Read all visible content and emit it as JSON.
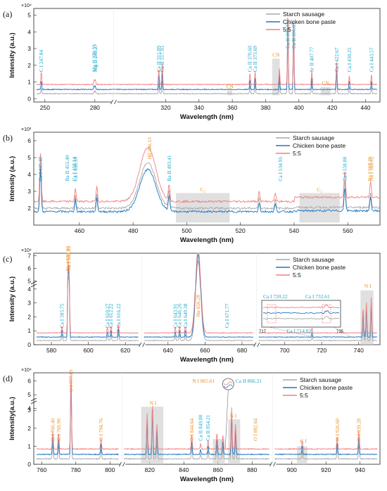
{
  "colors": {
    "starch": "#a8a8a8",
    "chicken": "#1f77c4",
    "mix": "#f08080",
    "cyan": "#1aa7c9",
    "orange": "#e8901c"
  },
  "legend": [
    "Starch sausage",
    "Chicken bone paste",
    "5:5"
  ],
  "chart_data": [
    {
      "type": "line",
      "panel": "(a)",
      "multiplier": "×10⁴",
      "xlabel": "Wavelength (nm)",
      "ylabel": "Intensity (a.u.)",
      "segments": [
        [
          245,
          290
        ],
        [
          290,
          447
        ]
      ],
      "yticks": [
        0,
        1,
        2,
        3,
        4,
        5
      ],
      "xticks": [
        "250",
        "280",
        "320",
        "340",
        "360",
        "380",
        "400",
        "420",
        "440"
      ],
      "ylim": [
        -0.2,
        5.4
      ],
      "series": [
        {
          "name": "Starch sausage",
          "baseline": 0.3
        },
        {
          "name": "Chicken bone paste",
          "baseline": 0.55
        },
        {
          "name": "5:5",
          "baseline": 0.85
        }
      ],
      "peaks": [
        {
          "x": 247.84,
          "h": [
            0.3,
            0.5,
            0.8
          ]
        },
        {
          "x": 279.55,
          "h": [
            0.15,
            0.2,
            0.3
          ]
        },
        {
          "x": 280.27,
          "h": [
            0.15,
            0.2,
            0.3
          ]
        },
        {
          "x": 315.89,
          "h": [
            0.6,
            0.9,
            1.0
          ]
        },
        {
          "x": 317.93,
          "h": [
            0.8,
            1.1,
            1.3
          ]
        },
        {
          "x": 370.6,
          "h": [
            0.5,
            0.6,
            0.7
          ]
        },
        {
          "x": 373.69,
          "h": [
            0.6,
            0.7,
            0.8
          ]
        },
        {
          "x": 388.3,
          "h": [
            0.8,
            0.9,
            1.0
          ]
        },
        {
          "x": 393.37,
          "h": [
            4.4,
            4.6,
            4.5
          ]
        },
        {
          "x": 396.85,
          "h": [
            4.0,
            4.2,
            4.1
          ]
        },
        {
          "x": 407.77,
          "h": [
            0.6,
            0.7,
            0.8
          ]
        },
        {
          "x": 422.67,
          "h": [
            1.3,
            1.5,
            1.4
          ]
        },
        {
          "x": 430.25,
          "h": [
            0.4,
            0.5,
            0.5
          ]
        },
        {
          "x": 443.57,
          "h": [
            0.4,
            0.5,
            0.6
          ]
        }
      ],
      "annotations": [
        {
          "text": "C I 247.84",
          "x": 247.84,
          "color": "cyan"
        },
        {
          "text": "Mg II 279.55",
          "x": 279.55,
          "color": "cyan"
        },
        {
          "text": "Mg II 280.27",
          "x": 280.27,
          "color": "cyan"
        },
        {
          "text": "Ca II 315.89",
          "x": 315.89,
          "color": "cyan"
        },
        {
          "text": "Ca II 317.93",
          "x": 317.93,
          "color": "cyan"
        },
        {
          "text": "Ca II 370.60",
          "x": 370.6,
          "color": "cyan"
        },
        {
          "text": "Ca II 373.69",
          "x": 373.69,
          "color": "cyan"
        },
        {
          "text": "Ca II 393.37",
          "x": 393.37,
          "color": "cyan"
        },
        {
          "text": "Ca II 396.85",
          "x": 396.85,
          "color": "cyan"
        },
        {
          "text": "Sr II 407.77",
          "x": 407.77,
          "color": "cyan"
        },
        {
          "text": "Ca I 422.67",
          "x": 422.67,
          "color": "cyan"
        },
        {
          "text": "Ca I 430.25",
          "x": 430.25,
          "color": "cyan"
        },
        {
          "text": "Ca I 443.57",
          "x": 443.57,
          "color": "cyan"
        }
      ],
      "bands": [
        {
          "label": "CN",
          "x0": 357,
          "x1": 360,
          "y": 0.5
        },
        {
          "label": "CN",
          "x0": 384,
          "x1": 388.5,
          "y": 2.4
        },
        {
          "label": "CN",
          "x0": 413,
          "x1": 419,
          "y": 0.7
        }
      ]
    },
    {
      "type": "line",
      "panel": "(b)",
      "multiplier": "×10³",
      "xlabel": "Wavelength (nm)",
      "ylabel": "Intensity (a.u.)",
      "xlim": [
        443,
        572
      ],
      "xticks": [
        460,
        480,
        500,
        520,
        540,
        560
      ],
      "yticks": [
        2,
        3,
        4,
        5,
        6
      ],
      "ylim": [
        1.0,
        6.5
      ],
      "series": [
        {
          "name": "Starch sausage",
          "baseline": 2.0
        },
        {
          "name": "Chicken bone paste",
          "baseline": 1.8
        },
        {
          "name": "5:5",
          "baseline": 2.4
        }
      ],
      "annotations": [
        {
          "text": "Ca I 445.48",
          "x": 445.48,
          "color": "cyan"
        },
        {
          "text": "Ba II 455.40",
          "x": 455.4,
          "color": "cyan"
        },
        {
          "text": "Ca I 458.14",
          "x": 458.14,
          "color": "cyan"
        },
        {
          "text": "Ca I 458.59",
          "x": 458.59,
          "color": "cyan"
        },
        {
          "text": "Hβ 486.13",
          "x": 486.13,
          "color": "orange"
        },
        {
          "text": "Ba II 493.41",
          "x": 493.41,
          "color": "cyan"
        },
        {
          "text": "Ca I 534.95",
          "x": 534.95,
          "color": "cyan"
        },
        {
          "text": "Ca I 558.88",
          "x": 558.88,
          "color": "cyan"
        },
        {
          "text": "Na I 568.26",
          "x": 568.26,
          "color": "orange"
        },
        {
          "text": "Na I 568.82",
          "x": 568.82,
          "color": "orange"
        }
      ],
      "bands": [
        {
          "label": "C₂",
          "x0": 496,
          "x1": 516
        },
        {
          "label": "C₂",
          "x0": 542,
          "x1": 557
        }
      ]
    },
    {
      "type": "line",
      "panel": "(c)",
      "multiplier": "×10⁴",
      "xlabel": "Wavelength (nm)",
      "ylabel": "Intensity (a.u.)",
      "segments": [
        [
          572,
          627
        ],
        [
          627,
          686
        ],
        [
          686,
          750
        ]
      ],
      "xticks": [
        580,
        600,
        620,
        640,
        660,
        680,
        700,
        720,
        740
      ],
      "yticks": [
        0,
        1,
        2,
        3,
        4,
        5,
        6,
        7
      ],
      "annotations": [
        {
          "text": "Ca I 585.75",
          "x": 585.75,
          "color": "cyan"
        },
        {
          "text": "Na I 589.00",
          "x": 589.0,
          "color": "orange"
        },
        {
          "text": "Na I 589.59",
          "x": 589.59,
          "color": "orange"
        },
        {
          "text": "Ca I 610.27",
          "x": 610.27,
          "color": "cyan"
        },
        {
          "text": "Ca I 612.22",
          "x": 612.22,
          "color": "cyan"
        },
        {
          "text": "Ca I 616.22",
          "x": 616.22,
          "color": "cyan"
        },
        {
          "text": "Ca I 643.91",
          "x": 643.91,
          "color": "cyan"
        },
        {
          "text": "Ca I 646.26",
          "x": 646.26,
          "color": "cyan"
        },
        {
          "text": "Ca I 649.38",
          "x": 649.38,
          "color": "cyan"
        },
        {
          "text": "Hα 656.28",
          "x": 656.28,
          "color": "orange"
        },
        {
          "text": "Ca I 671.77",
          "x": 671.77,
          "color": "cyan"
        },
        {
          "text": "Ca I 714.82",
          "x": 714.82,
          "color": "cyan"
        },
        {
          "text": "N I",
          "x": 745,
          "color": "orange"
        }
      ],
      "inset": {
        "xticks": [
          "717",
          "735"
        ],
        "labels": [
          "Ca I 720.22",
          "Ca I 732.61"
        ]
      }
    },
    {
      "type": "line",
      "panel": "(d)",
      "multiplier": "×10⁴",
      "xlabel": "Wavelength (nm)",
      "ylabel": "Intensity(a.u.)",
      "segments": [
        [
          757,
          805
        ],
        [
          805,
          890
        ],
        [
          890,
          950
        ]
      ],
      "xticks": [
        760,
        780,
        800,
        820,
        840,
        860,
        880,
        900,
        920,
        940
      ],
      "yticks": [
        0,
        1,
        2,
        3,
        4,
        5,
        6
      ],
      "annotations": [
        {
          "text": "K I 766.49",
          "x": 766.49,
          "color": "orange"
        },
        {
          "text": "K I 769.90",
          "x": 769.9,
          "color": "orange"
        },
        {
          "text": "O I 777.19",
          "x": 777.19,
          "color": "orange"
        },
        {
          "text": "O I 794.76",
          "x": 794.76,
          "color": "orange"
        },
        {
          "text": "N I",
          "x": 822,
          "color": "orange"
        },
        {
          "text": "O I 844.64",
          "x": 844.64,
          "color": "orange"
        },
        {
          "text": "Ca II 849.80",
          "x": 849.8,
          "color": "cyan"
        },
        {
          "text": "Ca II 854.21",
          "x": 854.21,
          "color": "cyan"
        },
        {
          "text": "N I 865.61",
          "x": 865.61,
          "color": "orange"
        },
        {
          "text": "Ca II 866.21",
          "x": 866.21,
          "color": "cyan"
        },
        {
          "text": "N I",
          "x": 869,
          "color": "orange"
        },
        {
          "text": "O I 882.04",
          "x": 882.04,
          "color": "orange"
        },
        {
          "text": "C I",
          "x": 907,
          "color": "orange"
        },
        {
          "text": "O I 926.60",
          "x": 926.6,
          "color": "orange"
        },
        {
          "text": "N I 939.28",
          "x": 939.28,
          "color": "orange"
        }
      ]
    }
  ]
}
